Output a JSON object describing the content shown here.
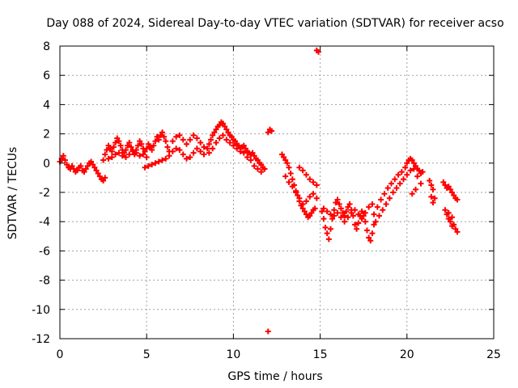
{
  "chart_data": {
    "type": "scatter",
    "title": "Day 088 of 2024, Sidereal Day-to-day VTEC variation (SDTVAR) for receiver acso",
    "xlabel": "GPS time / hours",
    "ylabel": "SDTVAR / TECUs",
    "xlim": [
      0,
      25
    ],
    "ylim": [
      -12,
      8
    ],
    "xticks": [
      0,
      5,
      10,
      15,
      20,
      25
    ],
    "yticks": [
      -12,
      -10,
      -8,
      -6,
      -4,
      -2,
      0,
      2,
      4,
      6,
      8
    ],
    "grid": true,
    "marker": "+",
    "color": "#ff0000",
    "series": [
      {
        "name": "SDTVAR",
        "points": [
          [
            0.0,
            0.1
          ],
          [
            0.1,
            0.3
          ],
          [
            0.2,
            0.5
          ],
          [
            0.3,
            0.2
          ],
          [
            0.4,
            -0.1
          ],
          [
            0.5,
            -0.3
          ],
          [
            0.6,
            -0.4
          ],
          [
            0.7,
            -0.2
          ],
          [
            0.8,
            -0.4
          ],
          [
            0.9,
            -0.6
          ],
          [
            1.0,
            -0.5
          ],
          [
            1.1,
            -0.3
          ],
          [
            1.2,
            -0.2
          ],
          [
            1.3,
            -0.5
          ],
          [
            1.4,
            -0.6
          ],
          [
            1.5,
            -0.4
          ],
          [
            1.6,
            -0.2
          ],
          [
            1.7,
            0.0
          ],
          [
            1.8,
            0.1
          ],
          [
            1.9,
            -0.1
          ],
          [
            2.0,
            -0.3
          ],
          [
            2.1,
            -0.5
          ],
          [
            2.2,
            -0.7
          ],
          [
            2.3,
            -0.9
          ],
          [
            2.4,
            -1.1
          ],
          [
            2.5,
            -1.2
          ],
          [
            2.6,
            -1.0
          ],
          [
            2.5,
            0.2
          ],
          [
            2.6,
            0.6
          ],
          [
            2.7,
            0.9
          ],
          [
            2.8,
            1.2
          ],
          [
            2.9,
            1.0
          ],
          [
            3.0,
            0.8
          ],
          [
            3.1,
            1.1
          ],
          [
            3.2,
            1.4
          ],
          [
            3.3,
            1.7
          ],
          [
            3.4,
            1.5
          ],
          [
            3.5,
            1.2
          ],
          [
            3.6,
            0.9
          ],
          [
            3.7,
            0.7
          ],
          [
            3.8,
            0.9
          ],
          [
            3.9,
            1.2
          ],
          [
            4.0,
            1.4
          ],
          [
            4.1,
            1.1
          ],
          [
            4.2,
            0.8
          ],
          [
            4.3,
            0.6
          ],
          [
            4.4,
            0.9
          ],
          [
            4.5,
            1.2
          ],
          [
            4.6,
            1.5
          ],
          [
            4.7,
            1.3
          ],
          [
            4.8,
            1.0
          ],
          [
            4.9,
            0.8
          ],
          [
            5.0,
            1.0
          ],
          [
            5.1,
            1.3
          ],
          [
            5.2,
            1.1
          ],
          [
            5.3,
            0.9
          ],
          [
            5.4,
            1.2
          ],
          [
            5.5,
            1.5
          ],
          [
            5.6,
            1.8
          ],
          [
            5.7,
            1.6
          ],
          [
            5.8,
            1.9
          ],
          [
            5.9,
            2.1
          ],
          [
            6.0,
            1.8
          ],
          [
            6.1,
            1.5
          ],
          [
            6.2,
            1.1
          ],
          [
            6.3,
            0.8
          ],
          [
            2.8,
            0.3
          ],
          [
            3.0,
            0.4
          ],
          [
            3.2,
            0.6
          ],
          [
            3.4,
            0.7
          ],
          [
            3.6,
            0.5
          ],
          [
            3.8,
            0.4
          ],
          [
            4.0,
            0.6
          ],
          [
            4.2,
            0.9
          ],
          [
            4.4,
            0.7
          ],
          [
            4.6,
            0.5
          ],
          [
            4.8,
            0.6
          ],
          [
            5.0,
            0.4
          ],
          [
            4.9,
            -0.3
          ],
          [
            5.1,
            -0.2
          ],
          [
            5.3,
            -0.1
          ],
          [
            5.5,
            0.0
          ],
          [
            5.7,
            0.1
          ],
          [
            5.9,
            0.2
          ],
          [
            6.1,
            0.3
          ],
          [
            6.3,
            0.5
          ],
          [
            6.5,
            0.8
          ],
          [
            6.7,
            1.0
          ],
          [
            6.9,
            0.9
          ],
          [
            7.1,
            0.6
          ],
          [
            7.3,
            0.3
          ],
          [
            7.5,
            0.4
          ],
          [
            7.7,
            0.7
          ],
          [
            7.9,
            1.0
          ],
          [
            8.1,
            0.8
          ],
          [
            8.3,
            0.6
          ],
          [
            6.5,
            1.5
          ],
          [
            6.7,
            1.8
          ],
          [
            6.9,
            1.9
          ],
          [
            7.1,
            1.6
          ],
          [
            7.3,
            1.3
          ],
          [
            7.5,
            1.6
          ],
          [
            7.7,
            1.9
          ],
          [
            7.9,
            1.7
          ],
          [
            8.1,
            1.4
          ],
          [
            8.3,
            1.1
          ],
          [
            8.5,
            1.0
          ],
          [
            8.6,
            1.3
          ],
          [
            8.7,
            1.6
          ],
          [
            8.8,
            1.9
          ],
          [
            8.9,
            2.1
          ],
          [
            9.0,
            2.3
          ],
          [
            9.1,
            2.5
          ],
          [
            9.2,
            2.6
          ],
          [
            9.3,
            2.8
          ],
          [
            9.4,
            2.7
          ],
          [
            9.5,
            2.5
          ],
          [
            9.6,
            2.3
          ],
          [
            9.7,
            2.1
          ],
          [
            9.8,
            1.9
          ],
          [
            9.9,
            1.8
          ],
          [
            10.0,
            1.6
          ],
          [
            10.1,
            1.5
          ],
          [
            10.2,
            1.3
          ],
          [
            10.3,
            1.2
          ],
          [
            10.4,
            1.0
          ],
          [
            10.5,
            1.1
          ],
          [
            10.6,
            1.2
          ],
          [
            10.7,
            1.0
          ],
          [
            10.8,
            0.8
          ],
          [
            10.9,
            0.7
          ],
          [
            11.0,
            0.6
          ],
          [
            11.1,
            0.7
          ],
          [
            11.2,
            0.5
          ],
          [
            11.3,
            0.3
          ],
          [
            11.4,
            0.2
          ],
          [
            11.5,
            0.0
          ],
          [
            11.6,
            -0.1
          ],
          [
            11.7,
            -0.3
          ],
          [
            11.8,
            -0.4
          ],
          [
            8.6,
            0.7
          ],
          [
            8.8,
            1.0
          ],
          [
            9.0,
            1.4
          ],
          [
            9.2,
            1.7
          ],
          [
            9.4,
            1.9
          ],
          [
            9.6,
            1.6
          ],
          [
            9.8,
            1.4
          ],
          [
            10.0,
            1.2
          ],
          [
            10.2,
            1.0
          ],
          [
            10.4,
            0.8
          ],
          [
            10.6,
            0.7
          ],
          [
            10.8,
            0.4
          ],
          [
            11.0,
            0.2
          ],
          [
            11.2,
            -0.2
          ],
          [
            11.4,
            -0.4
          ],
          [
            11.6,
            -0.6
          ],
          [
            12.0,
            2.1
          ],
          [
            12.1,
            2.3
          ],
          [
            12.2,
            2.2
          ],
          [
            12.8,
            0.6
          ],
          [
            12.9,
            0.4
          ],
          [
            13.0,
            0.2
          ],
          [
            13.1,
            0.0
          ],
          [
            13.2,
            -0.3
          ],
          [
            13.3,
            -0.7
          ],
          [
            13.4,
            -1.1
          ],
          [
            13.5,
            -1.5
          ],
          [
            13.6,
            -1.9
          ],
          [
            13.7,
            -2.2
          ],
          [
            13.8,
            -2.6
          ],
          [
            13.9,
            -2.9
          ],
          [
            14.0,
            -3.1
          ],
          [
            14.1,
            -3.3
          ],
          [
            14.2,
            -3.5
          ],
          [
            14.3,
            -3.7
          ],
          [
            14.4,
            -3.6
          ],
          [
            14.5,
            -3.4
          ],
          [
            14.6,
            -3.2
          ],
          [
            14.7,
            -3.1
          ],
          [
            13.0,
            -0.9
          ],
          [
            13.2,
            -1.3
          ],
          [
            13.4,
            -1.6
          ],
          [
            13.6,
            -2.0
          ],
          [
            13.8,
            -2.4
          ],
          [
            14.0,
            -2.8
          ],
          [
            14.2,
            -2.6
          ],
          [
            14.4,
            -2.3
          ],
          [
            14.6,
            -2.1
          ],
          [
            14.8,
            -2.4
          ],
          [
            13.8,
            -0.3
          ],
          [
            14.0,
            -0.5
          ],
          [
            14.2,
            -0.8
          ],
          [
            14.4,
            -1.1
          ],
          [
            14.6,
            -1.3
          ],
          [
            14.8,
            -1.5
          ],
          [
            15.1,
            -3.3
          ],
          [
            15.2,
            -3.8
          ],
          [
            15.3,
            -4.4
          ],
          [
            15.4,
            -4.8
          ],
          [
            15.5,
            -5.2
          ],
          [
            15.6,
            -4.5
          ],
          [
            15.7,
            -3.8
          ],
          [
            15.8,
            -3.2
          ],
          [
            15.9,
            -2.7
          ],
          [
            16.0,
            -2.5
          ],
          [
            16.1,
            -2.8
          ],
          [
            16.2,
            -3.1
          ],
          [
            16.3,
            -3.4
          ],
          [
            16.4,
            -3.6
          ],
          [
            16.5,
            -3.3
          ],
          [
            16.6,
            -3.0
          ],
          [
            16.7,
            -2.8
          ],
          [
            16.8,
            -3.2
          ],
          [
            16.9,
            -3.6
          ],
          [
            17.0,
            -4.2
          ],
          [
            17.1,
            -4.5
          ],
          [
            17.2,
            -4.1
          ],
          [
            17.3,
            -3.6
          ],
          [
            17.4,
            -3.3
          ],
          [
            17.5,
            -3.6
          ],
          [
            17.6,
            -4.0
          ],
          [
            17.7,
            -4.6
          ],
          [
            17.8,
            -5.1
          ],
          [
            17.9,
            -5.3
          ],
          [
            18.0,
            -4.8
          ],
          [
            18.1,
            -4.2
          ],
          [
            15.2,
            -3.1
          ],
          [
            15.4,
            -3.3
          ],
          [
            15.6,
            -3.5
          ],
          [
            15.8,
            -3.6
          ],
          [
            16.0,
            -3.4
          ],
          [
            16.2,
            -3.7
          ],
          [
            16.4,
            -4.0
          ],
          [
            16.6,
            -3.7
          ],
          [
            16.8,
            -3.4
          ],
          [
            17.0,
            -3.2
          ],
          [
            17.2,
            -3.5
          ],
          [
            17.4,
            -3.8
          ],
          [
            17.6,
            -3.4
          ],
          [
            17.8,
            -3.0
          ],
          [
            18.0,
            -2.8
          ],
          [
            18.1,
            -3.5
          ],
          [
            18.3,
            -3.0
          ],
          [
            18.5,
            -2.5
          ],
          [
            18.7,
            -2.1
          ],
          [
            18.9,
            -1.7
          ],
          [
            19.1,
            -1.4
          ],
          [
            19.3,
            -1.1
          ],
          [
            19.5,
            -0.8
          ],
          [
            19.7,
            -0.6
          ],
          [
            19.9,
            -0.3
          ],
          [
            20.0,
            0.0
          ],
          [
            20.1,
            0.2
          ],
          [
            20.2,
            0.3
          ],
          [
            20.3,
            0.2
          ],
          [
            20.4,
            0.0
          ],
          [
            20.5,
            -0.2
          ],
          [
            20.6,
            -0.4
          ],
          [
            20.7,
            -0.5
          ],
          [
            20.8,
            -0.7
          ],
          [
            20.9,
            -0.6
          ],
          [
            18.2,
            -4.0
          ],
          [
            18.4,
            -3.6
          ],
          [
            18.6,
            -3.2
          ],
          [
            18.8,
            -2.8
          ],
          [
            19.0,
            -2.4
          ],
          [
            19.2,
            -2.0
          ],
          [
            19.4,
            -1.7
          ],
          [
            19.6,
            -1.4
          ],
          [
            19.8,
            -1.1
          ],
          [
            20.0,
            -0.8
          ],
          [
            20.2,
            -0.5
          ],
          [
            20.4,
            -0.4
          ],
          [
            20.6,
            -0.9
          ],
          [
            20.8,
            -1.4
          ],
          [
            20.5,
            -1.8
          ],
          [
            20.3,
            -2.1
          ],
          [
            21.3,
            -1.2
          ],
          [
            21.4,
            -1.5
          ],
          [
            21.5,
            -1.8
          ],
          [
            21.4,
            -2.3
          ],
          [
            21.5,
            -2.7
          ],
          [
            21.6,
            -2.4
          ],
          [
            22.1,
            -1.3
          ],
          [
            22.2,
            -1.5
          ],
          [
            22.3,
            -1.7
          ],
          [
            22.4,
            -1.6
          ],
          [
            22.5,
            -1.8
          ],
          [
            22.6,
            -2.0
          ],
          [
            22.7,
            -2.2
          ],
          [
            22.8,
            -2.4
          ],
          [
            22.9,
            -2.5
          ],
          [
            22.2,
            -3.2
          ],
          [
            22.3,
            -3.5
          ],
          [
            22.4,
            -3.8
          ],
          [
            22.5,
            -4.0
          ],
          [
            22.6,
            -3.7
          ],
          [
            22.7,
            -4.2
          ],
          [
            22.8,
            -4.5
          ],
          [
            22.9,
            -4.7
          ],
          [
            22.6,
            -4.3
          ],
          [
            22.4,
            -3.4
          ],
          [
            14.8,
            7.7
          ],
          [
            14.9,
            7.6
          ],
          [
            12.0,
            -11.5
          ]
        ]
      }
    ]
  }
}
